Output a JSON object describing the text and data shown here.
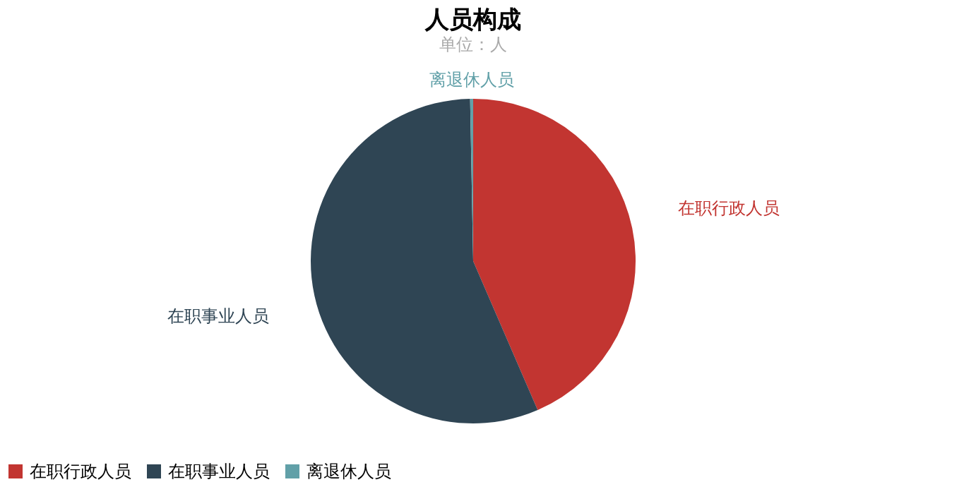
{
  "chart_data": {
    "type": "pie",
    "title": "人员构成",
    "subtitle": "单位：人",
    "categories": [
      "在职行政人员",
      "在职事业人员",
      "离退休人员"
    ],
    "values": [
      43.5,
      56.2,
      0.3
    ],
    "colors": [
      "#c23531",
      "#2f4554",
      "#61a0a8"
    ],
    "legend": "bottom"
  }
}
